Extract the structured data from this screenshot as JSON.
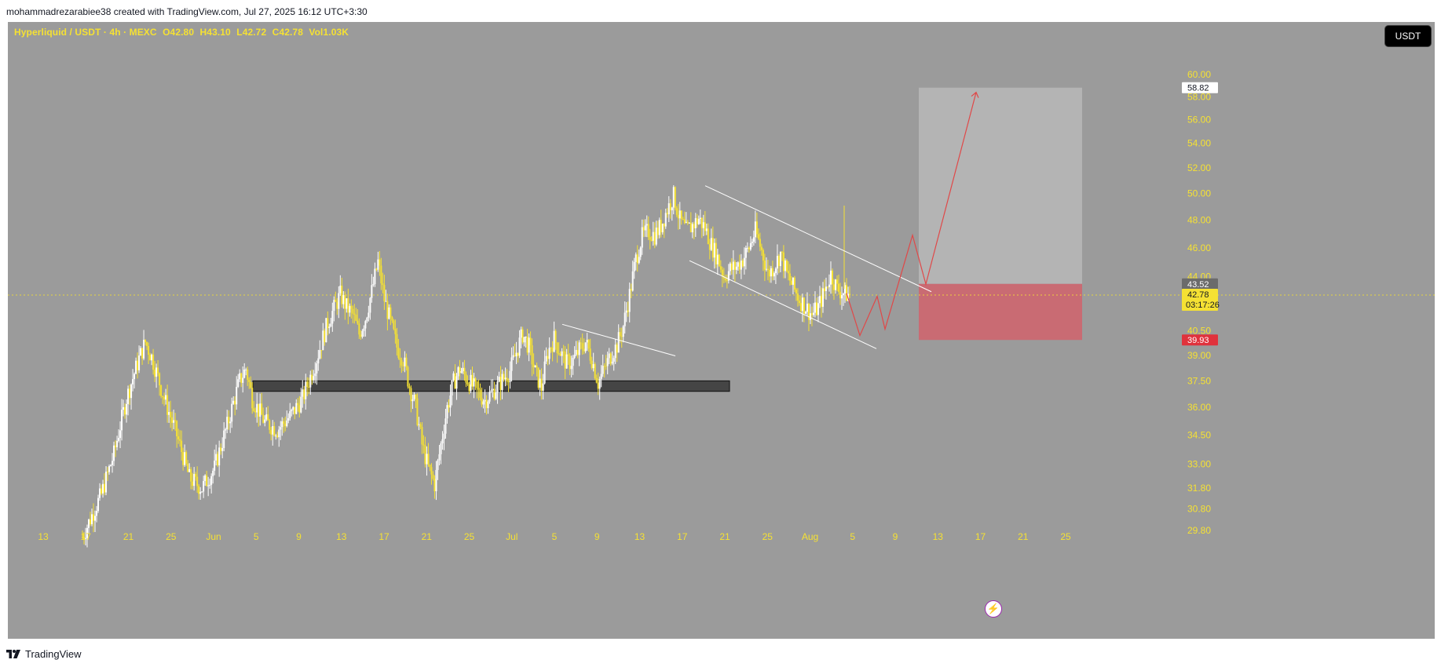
{
  "header": {
    "attribution": "mohammadrezarabiee38 created with TradingView.com, Jul 27, 2025 16:12 UTC+3:30"
  },
  "legend": {
    "symbol": "Hyperliquid / USDT · 4h · MEXC",
    "open": "O42.80",
    "high": "H43.10",
    "low": "L42.72",
    "close": "C42.78",
    "volume": "Vol1.03K"
  },
  "currency_button": "USDT",
  "footer": {
    "brand": "TradingView"
  },
  "colors": {
    "background": "#9b9b9b",
    "candle": "#f5e133",
    "candle_alt": "#ffffff",
    "target_zone": "#b4b4b4",
    "stop_zone": "#c96b73",
    "projection_line": "#e04848",
    "support_zone": "#454545"
  },
  "chart_data": {
    "type": "candlestick",
    "symbol": "Hyperliquid / USDT",
    "interval": "4h",
    "exchange": "MEXC",
    "last_ohlc": {
      "open": 42.8,
      "high": 43.1,
      "low": 42.72,
      "close": 42.78,
      "volume": "1.03K"
    },
    "x_tick_labels": [
      "13",
      "17",
      "21",
      "25",
      "Jun",
      "5",
      "9",
      "13",
      "17",
      "21",
      "25",
      "Jul",
      "5",
      "9",
      "13",
      "17",
      "21",
      "25",
      "Aug",
      "5",
      "9",
      "13",
      "17",
      "21",
      "25"
    ],
    "y_tick_labels": [
      "60.00",
      "58.00",
      "56.00",
      "54.00",
      "52.00",
      "50.00",
      "48.00",
      "46.00",
      "44.00",
      "40.50",
      "39.00",
      "37.50",
      "36.00",
      "34.50",
      "33.00",
      "31.80",
      "30.80",
      "29.80"
    ],
    "y_range": [
      29.2,
      62.0
    ],
    "scale": "log",
    "price_labels": [
      {
        "value": "58.82",
        "role": "target"
      },
      {
        "value": "43.52",
        "role": "entry"
      },
      {
        "value": "42.78",
        "role": "last",
        "sub": "03:17:26"
      },
      {
        "value": "39.93",
        "role": "stop"
      }
    ],
    "approx_price_path": [
      [
        0,
        29.5
      ],
      [
        3,
        31.5
      ],
      [
        5,
        33.5
      ],
      [
        7,
        36.5
      ],
      [
        9,
        38.8
      ],
      [
        10,
        39.8
      ],
      [
        11,
        38.9
      ],
      [
        13,
        36.5
      ],
      [
        15,
        34.5
      ],
      [
        17,
        32.3
      ],
      [
        19,
        31.8
      ],
      [
        21,
        32.8
      ],
      [
        23,
        35.0
      ],
      [
        25,
        37.5
      ],
      [
        26,
        38.2
      ],
      [
        27,
        36.5
      ],
      [
        29,
        35.2
      ],
      [
        31,
        34.8
      ],
      [
        33,
        35.5
      ],
      [
        35,
        36.5
      ],
      [
        37,
        38.5
      ],
      [
        39,
        41.0
      ],
      [
        41,
        42.8
      ],
      [
        42,
        42.0
      ],
      [
        43,
        41.5
      ],
      [
        44,
        40.3
      ],
      [
        45,
        41.3
      ],
      [
        46,
        43.0
      ],
      [
        47,
        45.0
      ],
      [
        48,
        42.5
      ],
      [
        49,
        41.0
      ],
      [
        50,
        39.5
      ],
      [
        51,
        38.8
      ],
      [
        52,
        37.2
      ],
      [
        53,
        36.0
      ],
      [
        54,
        34.0
      ],
      [
        55,
        32.8
      ],
      [
        56,
        32.0
      ],
      [
        57,
        34.0
      ],
      [
        58,
        36.0
      ],
      [
        59,
        37.4
      ],
      [
        60,
        38.2
      ],
      [
        62,
        37.2
      ],
      [
        64,
        36.4
      ],
      [
        66,
        37.2
      ],
      [
        68,
        38.1
      ],
      [
        69,
        39.2
      ],
      [
        70,
        40.3
      ],
      [
        71,
        39.5
      ],
      [
        72,
        38.0
      ],
      [
        73,
        37.1
      ],
      [
        74,
        39.2
      ],
      [
        75,
        40.0
      ],
      [
        76,
        39.2
      ],
      [
        77,
        38.5
      ],
      [
        78,
        38.7
      ],
      [
        79,
        39.3
      ],
      [
        80,
        39.8
      ],
      [
        81,
        38.8
      ],
      [
        82,
        37.4
      ],
      [
        83,
        38.2
      ],
      [
        84,
        39.0
      ],
      [
        85,
        39.6
      ],
      [
        86,
        40.8
      ],
      [
        87,
        42.8
      ],
      [
        88,
        45.2
      ],
      [
        89,
        46.8
      ],
      [
        90,
        47.2
      ],
      [
        91,
        46.9
      ],
      [
        92,
        47.6
      ],
      [
        93,
        48.8
      ],
      [
        94,
        49.8
      ],
      [
        95,
        48.0
      ],
      [
        96,
        47.2
      ],
      [
        97,
        47.6
      ],
      [
        98,
        48.1
      ],
      [
        99,
        47.4
      ],
      [
        100,
        46.2
      ],
      [
        101,
        45.3
      ],
      [
        102,
        44.0
      ],
      [
        103,
        44.5
      ],
      [
        104,
        44.7
      ],
      [
        105,
        45.2
      ],
      [
        106,
        46.0
      ],
      [
        107,
        47.2
      ],
      [
        108,
        45.8
      ],
      [
        109,
        44.2
      ],
      [
        110,
        44.7
      ],
      [
        111,
        45.6
      ],
      [
        112,
        44.2
      ],
      [
        113,
        43.3
      ],
      [
        114,
        42.5
      ],
      [
        115,
        42.0
      ],
      [
        116,
        41.5
      ],
      [
        117,
        42.0
      ],
      [
        118,
        43.0
      ],
      [
        119,
        44.2
      ],
      [
        120,
        43.2
      ],
      [
        121,
        42.9
      ],
      [
        122,
        42.78
      ]
    ],
    "drawings": [
      {
        "kind": "support_zone",
        "price_low": 36.9,
        "price_high": 37.5
      },
      {
        "kind": "trendline",
        "label": "falling wedge upper",
        "from": [
          43.0,
          40.9
        ],
        "to": [
          45.6,
          37.9
        ]
      },
      {
        "kind": "descending_channel",
        "upper": [
          [
            50.6
          ],
          [
            43.4
          ]
        ],
        "lower": [
          [
            45.1
          ],
          [
            39.5
          ]
        ]
      },
      {
        "kind": "long_position",
        "entry": 43.52,
        "target": 58.82,
        "stop": 39.93
      },
      {
        "kind": "projection_path",
        "points": [
          42.9,
          40.2,
          42.7,
          40.6,
          46.9,
          43.5,
          58.5
        ]
      }
    ]
  }
}
